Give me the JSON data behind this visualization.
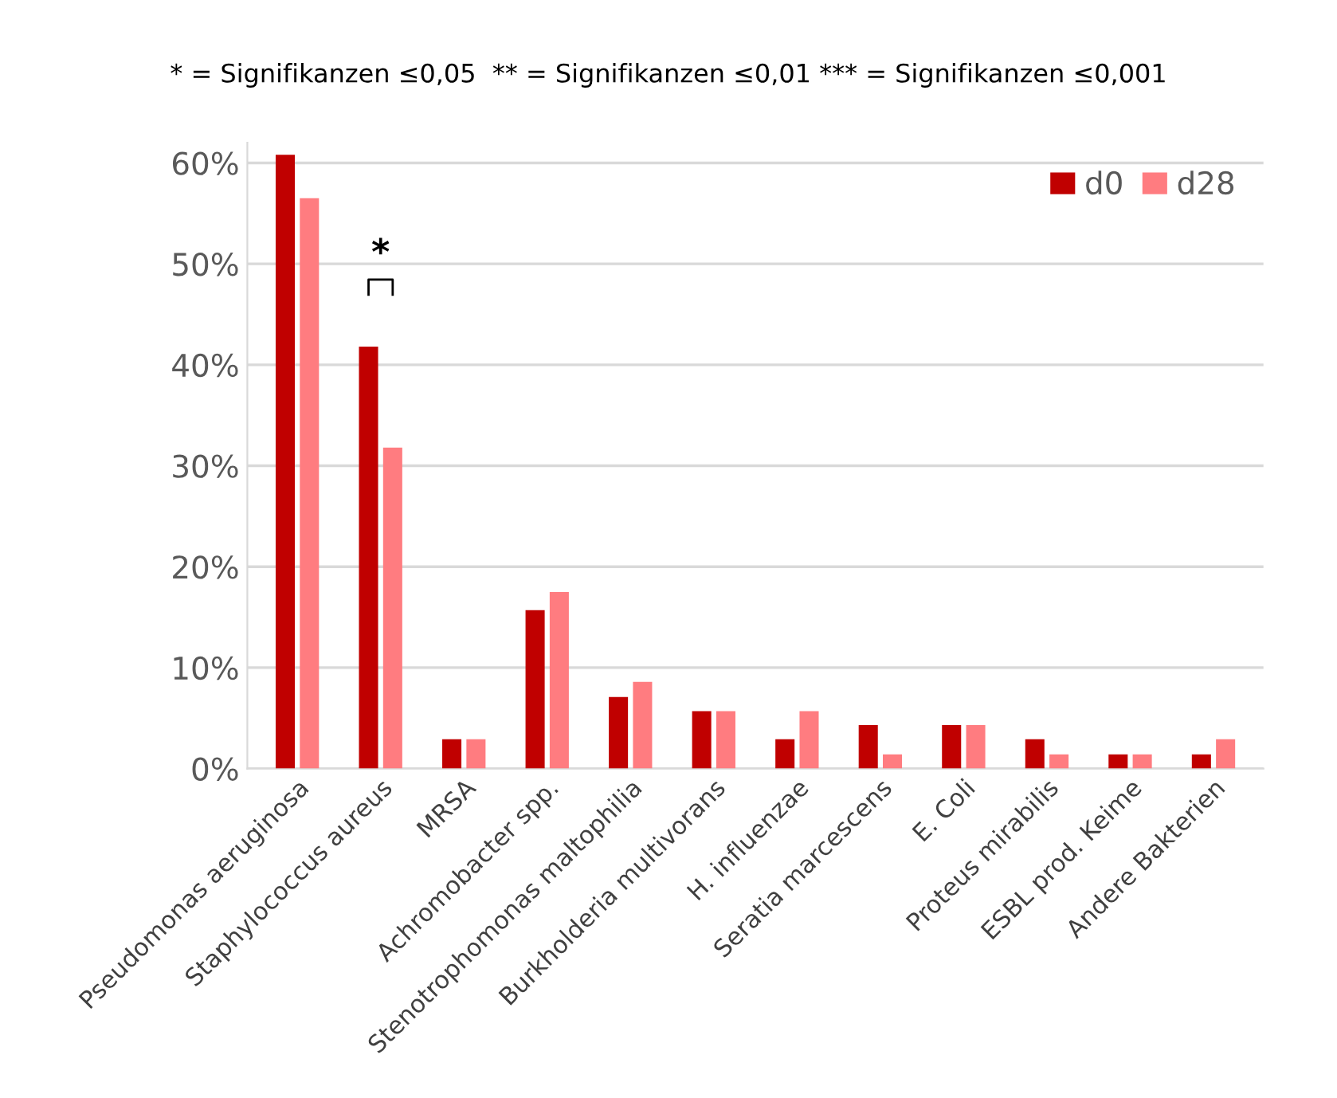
{
  "chart_data": {
    "type": "bar",
    "title": "* = Signifikanzen ≤0,05  ** = Signifikanzen ≤0,01 *** = Signifikanzen ≤0,001",
    "categories": [
      "Pseudomonas aeruginosa",
      "Staphylococcus aureus",
      "MRSA",
      "Achromobacter spp.",
      "Stenotrophomonas maltophilia",
      "Burkholderia multivorans",
      "H. influenzae",
      "Seratia marcescens",
      "E. Coli",
      "Proteus mirabilis",
      "ESBL prod. Keime",
      "Andere Bakterien"
    ],
    "series": [
      {
        "name": "d0",
        "color": "#c00000",
        "values": [
          60.8,
          41.8,
          2.9,
          15.7,
          7.1,
          5.7,
          2.9,
          4.3,
          4.3,
          2.9,
          1.4,
          1.4
        ]
      },
      {
        "name": "d28",
        "color": "#ff7c80",
        "values": [
          56.5,
          31.8,
          2.9,
          17.5,
          8.6,
          5.7,
          5.7,
          1.4,
          4.3,
          1.4,
          1.4,
          2.9
        ]
      }
    ],
    "annotations": [
      "*"
    ],
    "ylim": [
      0,
      62
    ],
    "yticks": [
      {
        "value": 0,
        "label": "0%"
      },
      {
        "value": 10,
        "label": "10%"
      },
      {
        "value": 20,
        "label": "20%"
      },
      {
        "value": 30,
        "label": "30%"
      },
      {
        "value": 40,
        "label": "40%"
      },
      {
        "value": 50,
        "label": "50%"
      },
      {
        "value": 60,
        "label": "60%"
      }
    ],
    "grid": "y",
    "legend": "top right"
  }
}
